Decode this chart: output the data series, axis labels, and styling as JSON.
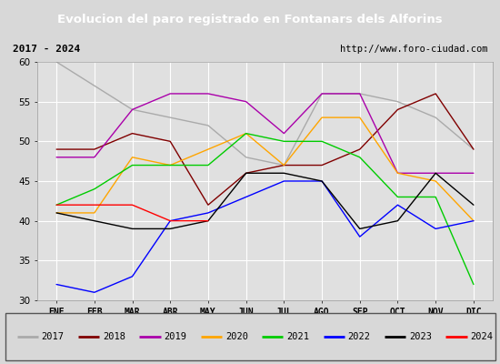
{
  "title": "Evolucion del paro registrado en Fontanars dels Alforins",
  "subtitle_left": "2017 - 2024",
  "subtitle_right": "http://www.foro-ciudad.com",
  "months": [
    "ENE",
    "FEB",
    "MAR",
    "ABR",
    "MAY",
    "JUN",
    "JUL",
    "AGO",
    "SEP",
    "OCT",
    "NOV",
    "DIC"
  ],
  "ylim": [
    30,
    60
  ],
  "yticks": [
    30,
    35,
    40,
    45,
    50,
    55,
    60
  ],
  "series": {
    "2017": {
      "color": "#aaaaaa",
      "values": [
        60,
        57,
        54,
        53,
        52,
        48,
        47,
        56,
        56,
        55,
        53,
        49
      ]
    },
    "2018": {
      "color": "#800000",
      "values": [
        49,
        49,
        51,
        50,
        42,
        46,
        47,
        47,
        49,
        54,
        56,
        49
      ]
    },
    "2019": {
      "color": "#aa00aa",
      "values": [
        48,
        48,
        54,
        56,
        56,
        55,
        51,
        56,
        56,
        46,
        46,
        46
      ]
    },
    "2020": {
      "color": "#ffa500",
      "values": [
        41,
        41,
        48,
        47,
        49,
        51,
        47,
        53,
        53,
        46,
        45,
        40
      ]
    },
    "2021": {
      "color": "#00cc00",
      "values": [
        42,
        44,
        47,
        47,
        47,
        51,
        50,
        50,
        48,
        43,
        43,
        32
      ]
    },
    "2022": {
      "color": "#0000ff",
      "values": [
        32,
        31,
        33,
        40,
        41,
        43,
        45,
        45,
        38,
        42,
        39,
        40
      ]
    },
    "2023": {
      "color": "#000000",
      "values": [
        41,
        40,
        39,
        39,
        40,
        46,
        46,
        45,
        39,
        40,
        46,
        42
      ]
    },
    "2024": {
      "color": "#ff0000",
      "values": [
        42,
        42,
        42,
        40,
        40,
        null,
        null,
        null,
        null,
        null,
        null,
        null
      ]
    }
  },
  "background_color": "#d8d8d8",
  "plot_background": "#e0e0e0",
  "title_bg": "#3a6bc9",
  "title_color": "#ffffff",
  "grid_color": "#ffffff",
  "subtitle_box_color": "#d0d0d0"
}
